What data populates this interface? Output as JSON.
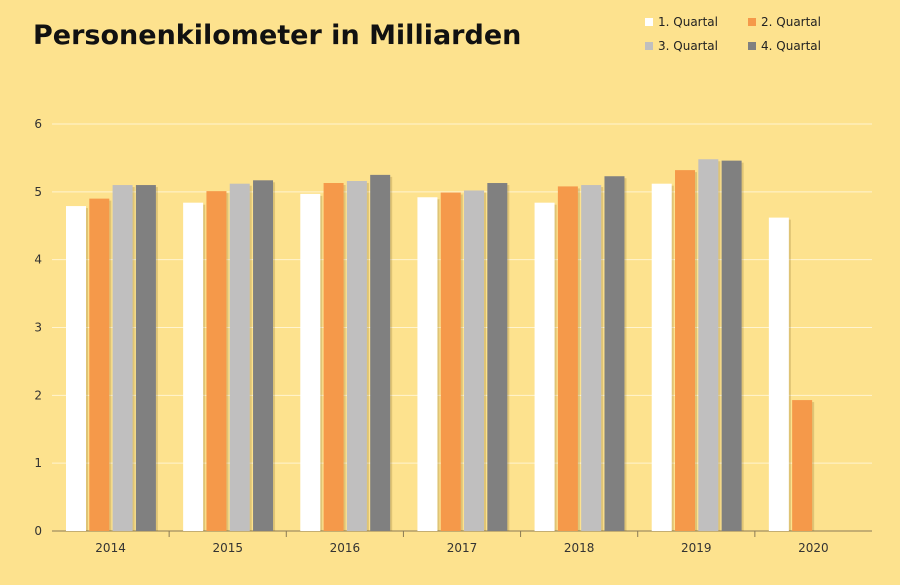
{
  "chart_data": {
    "type": "bar",
    "title": "Personenkilometer in Milliarden",
    "xlabel": "",
    "ylabel": "",
    "ylim": [
      0,
      6
    ],
    "yticks": [
      0,
      1,
      2,
      3,
      4,
      5,
      6
    ],
    "grid": true,
    "legend_position": "top-right",
    "categories": [
      "2014",
      "2015",
      "2016",
      "2017",
      "2018",
      "2019",
      "2020"
    ],
    "series": [
      {
        "name": "1. Quartal",
        "color": "#ffffff",
        "values": [
          4.79,
          4.84,
          4.97,
          4.92,
          4.84,
          5.12,
          4.62
        ]
      },
      {
        "name": "2. Quartal",
        "color": "#f5994a",
        "values": [
          4.9,
          5.01,
          5.13,
          4.99,
          5.08,
          5.32,
          1.93
        ]
      },
      {
        "name": "3. Quartal",
        "color": "#c0bfbf",
        "values": [
          5.1,
          5.12,
          5.16,
          5.02,
          5.1,
          5.48,
          null
        ]
      },
      {
        "name": "4. Quartal",
        "color": "#808080",
        "values": [
          5.1,
          5.17,
          5.25,
          5.13,
          5.23,
          5.46,
          null
        ]
      }
    ]
  }
}
